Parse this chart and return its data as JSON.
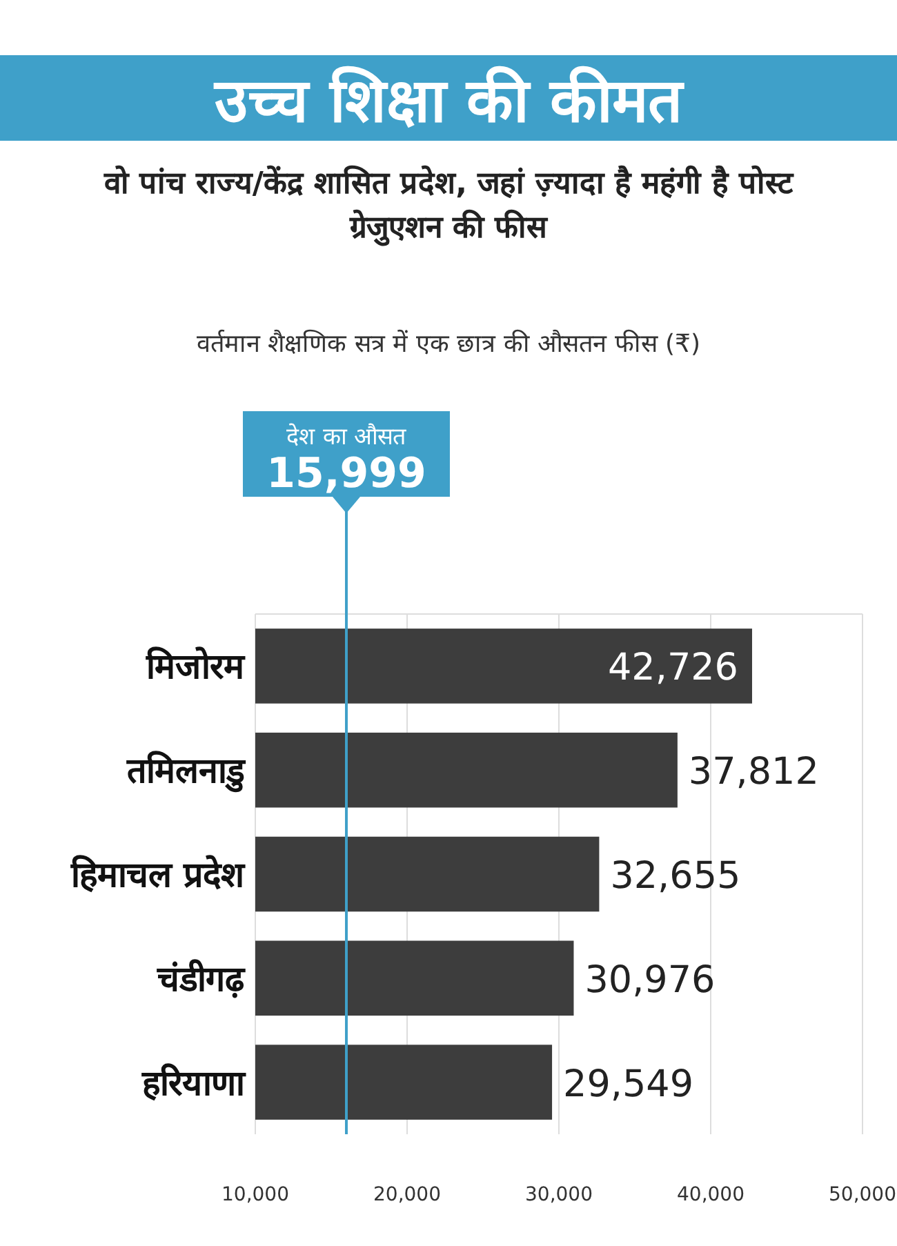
{
  "chart_data": {
    "type": "bar",
    "orientation": "horizontal",
    "title": "उच्च शिक्षा की कीमत",
    "subtitle": "वो पांच राज्य/केंद्र शासित प्रदेश, जहां ज़्यादा है महंगी है पोस्ट ग्रेजुएशन की फीस",
    "annotations": [
      "वर्तमान शैक्षणिक सत्र में एक छात्र की औसतन फीस (₹)"
    ],
    "categories": [
      "मिजोरम",
      "तमिलनाडु",
      "हिमाचल प्रदेश",
      "चंडीगढ़",
      "हरियाणा"
    ],
    "values": [
      42726,
      37812,
      32655,
      30976,
      29549
    ],
    "value_labels": [
      "42,726",
      "37,812",
      "32,655",
      "30,976",
      "29,549"
    ],
    "color": "#3d3d3d",
    "xlim": [
      10000,
      50000
    ],
    "xticks": [
      {
        "value": 10000,
        "label": "10,000"
      },
      {
        "value": 20000,
        "label": "20,000"
      },
      {
        "value": 30000,
        "label": "30,000"
      },
      {
        "value": 40000,
        "label": "40,000"
      },
      {
        "value": 50000,
        "label": "50,000"
      }
    ],
    "grid": "x",
    "ref_lines": [
      {
        "axis": "x",
        "value": 15999,
        "label": "देश का औसत\n15,999",
        "color": "#3fa0c9"
      }
    ]
  }
}
